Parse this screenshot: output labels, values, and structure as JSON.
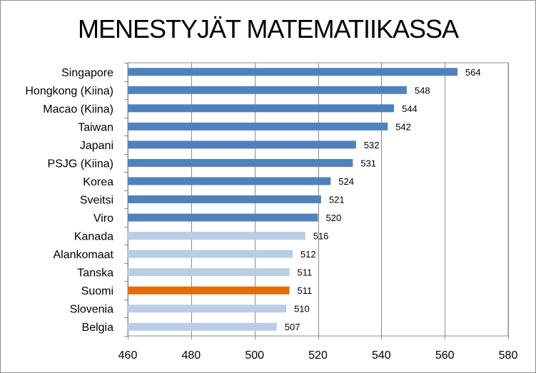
{
  "chart_data": {
    "type": "bar",
    "orientation": "horizontal",
    "title": "MENESTYJÄT MATEMATIIKASSA",
    "categories": [
      "Singapore",
      "Hongkong (Kiina)",
      "Macao (Kiina)",
      "Taiwan",
      "Japani",
      "PSJG (Kiina)",
      "Korea",
      "Sveitsi",
      "Viro",
      "Kanada",
      "Alankomaat",
      "Tanska",
      "Suomi",
      "Slovenia",
      "Belgia"
    ],
    "values": [
      564,
      548,
      544,
      542,
      532,
      531,
      524,
      521,
      520,
      516,
      512,
      511,
      511,
      510,
      507
    ],
    "colors": [
      "#4f81bd",
      "#4f81bd",
      "#4f81bd",
      "#4f81bd",
      "#4f81bd",
      "#4f81bd",
      "#4f81bd",
      "#4f81bd",
      "#4f81bd",
      "#b9cde5",
      "#b9cde5",
      "#b9cde5",
      "#e46c0a",
      "#b9cde5",
      "#b9cde5"
    ],
    "xlim": [
      460,
      580
    ],
    "xticks": [
      460,
      480,
      500,
      520,
      540,
      560,
      580
    ],
    "xlabel": "",
    "ylabel": "",
    "grid": "vertical gridlines",
    "legend": "none",
    "data_labels": true
  }
}
